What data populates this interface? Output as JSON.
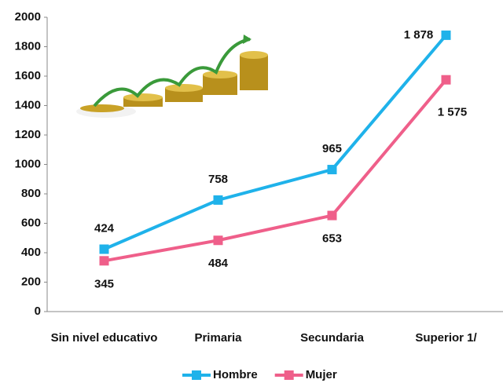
{
  "chart_data": {
    "type": "line",
    "categories": [
      "Sin nivel educativo",
      "Primaria",
      "Secundaria",
      "Superior 1/"
    ],
    "series": [
      {
        "name": "Hombre",
        "color": "#1fb2ea",
        "values": [
          424,
          758,
          965,
          1878
        ],
        "value_labels": [
          "424",
          "758",
          "965",
          "1 878"
        ]
      },
      {
        "name": "Mujer",
        "color": "#ef5f8a",
        "values": [
          345,
          484,
          653,
          1575
        ],
        "value_labels": [
          "345",
          "484",
          "653",
          "1 575"
        ]
      }
    ],
    "ylim": [
      0,
      2000
    ],
    "yticks": [
      0,
      200,
      400,
      600,
      800,
      1000,
      1200,
      1400,
      1600,
      1800,
      2000
    ],
    "grid": false,
    "legend": "bottom"
  }
}
